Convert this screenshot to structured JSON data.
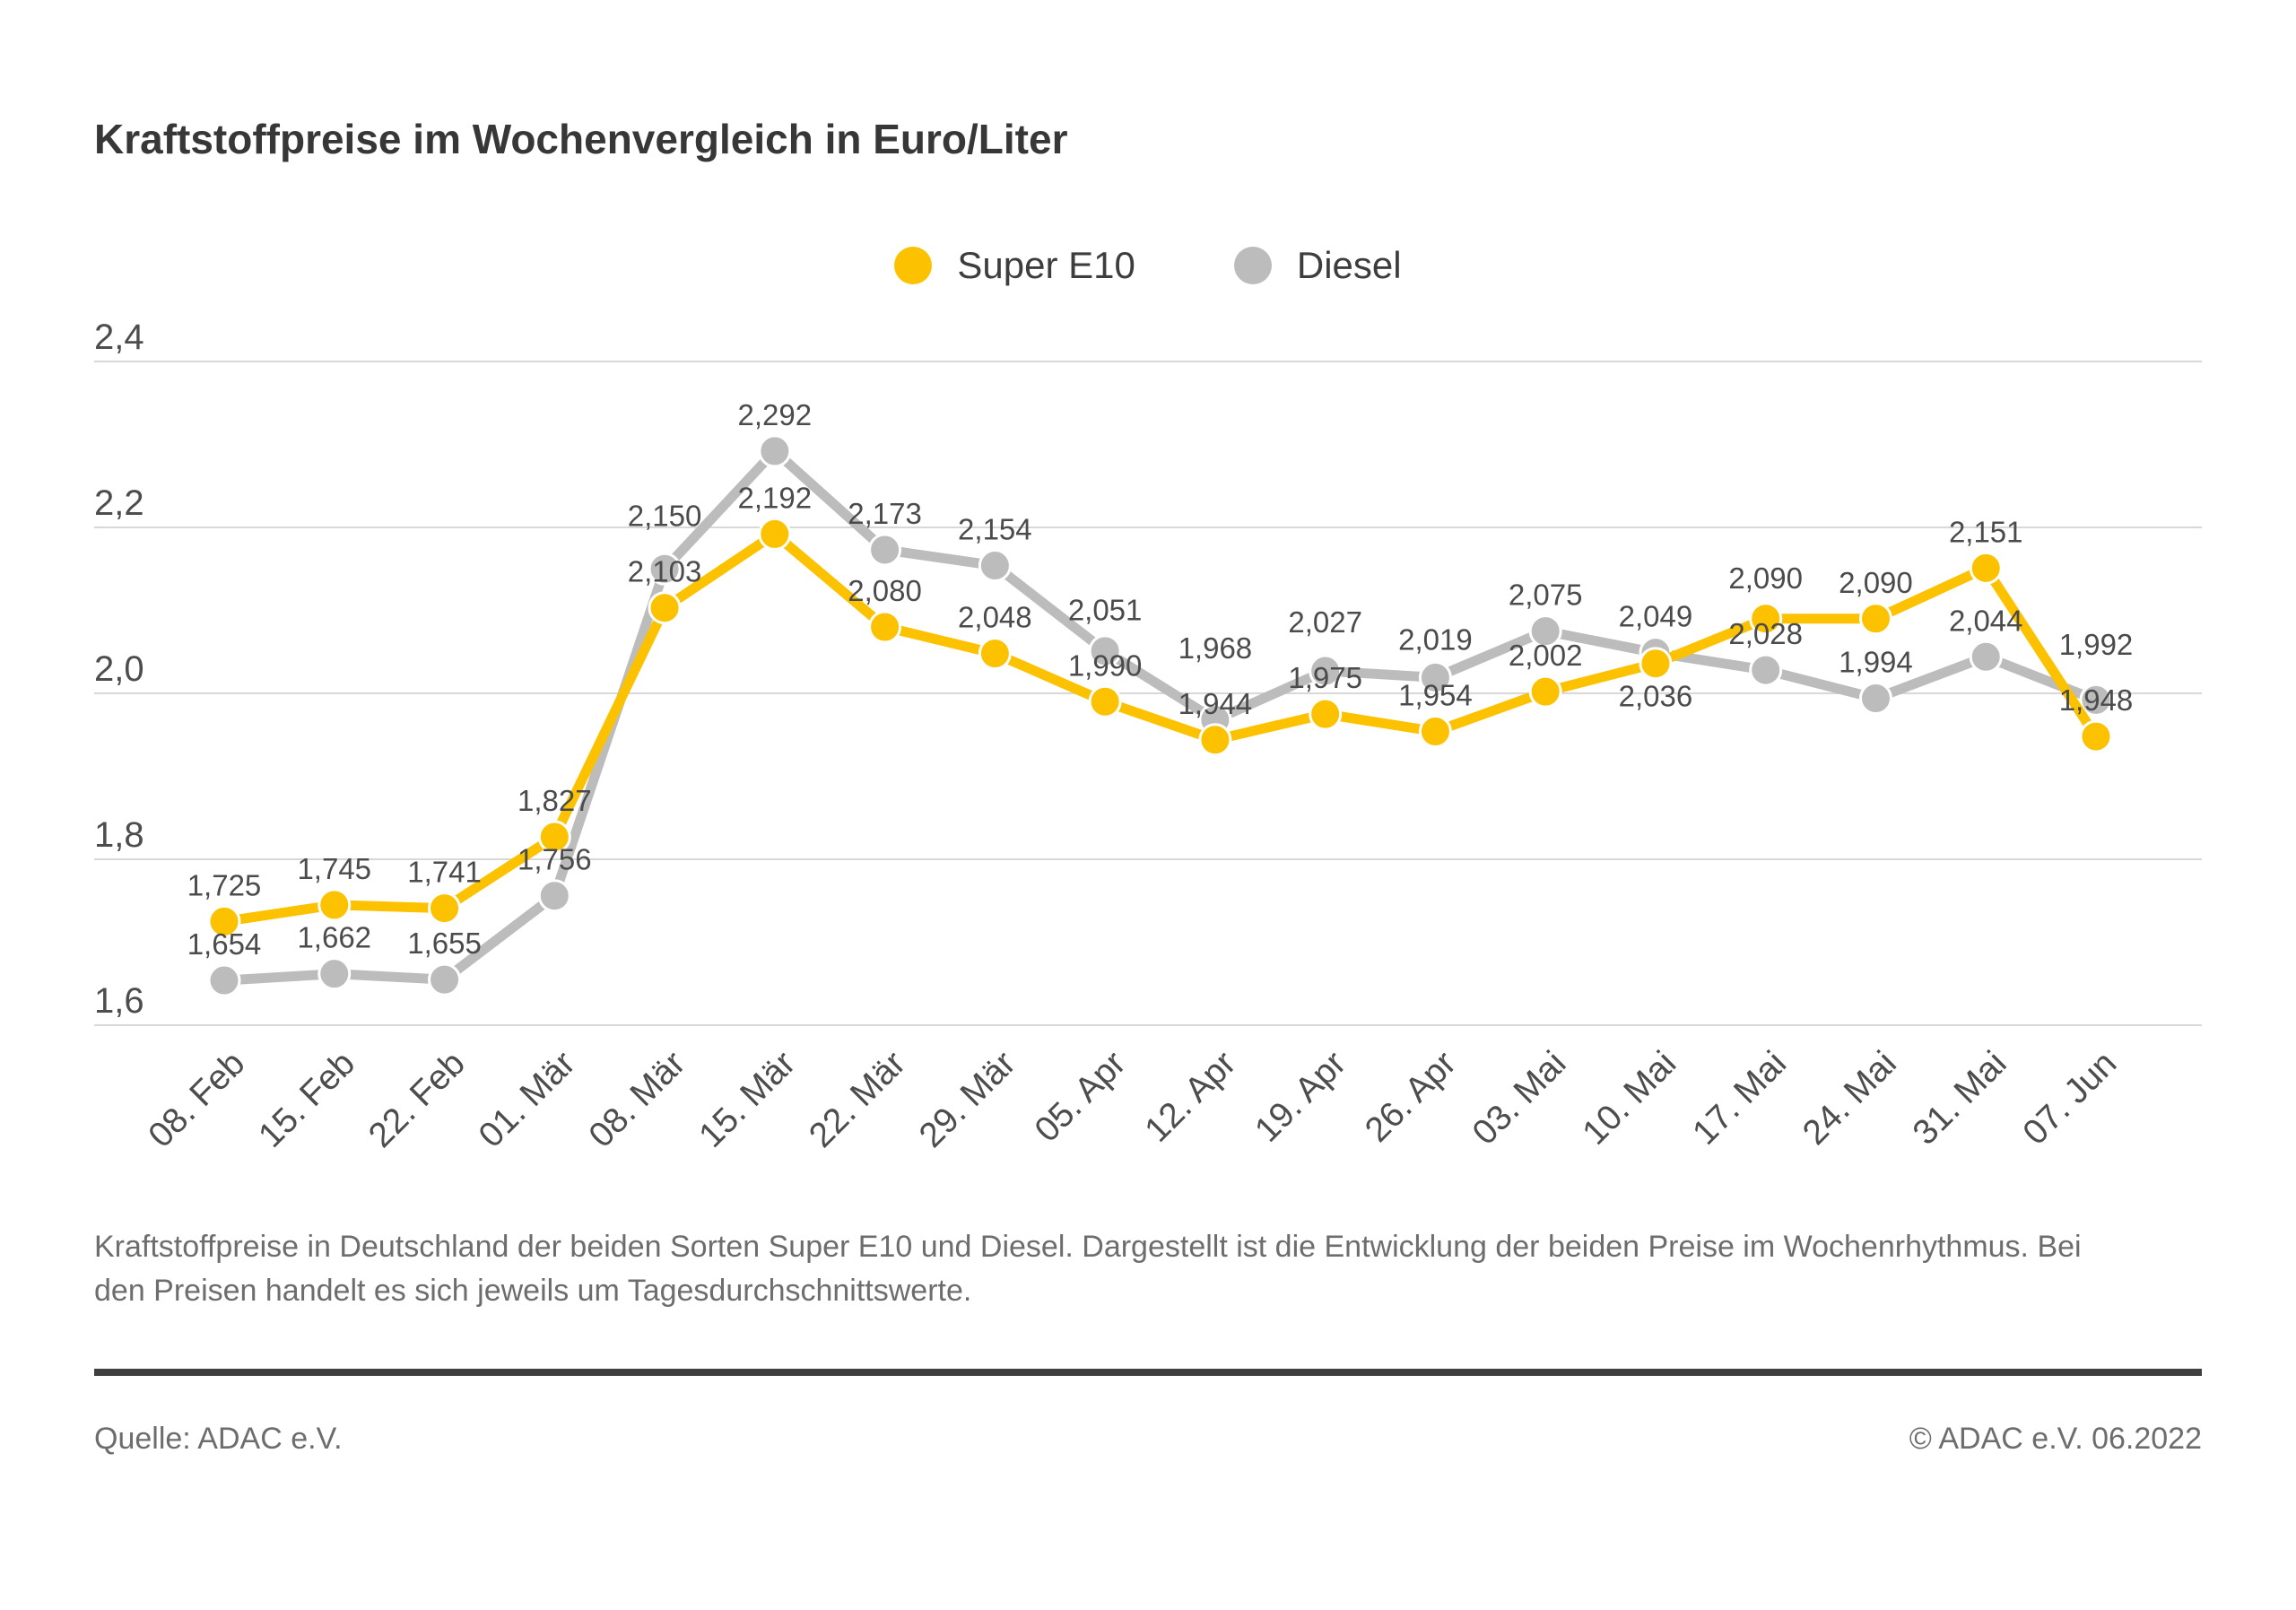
{
  "page": {
    "caption": "Kraftstoffpreise in Deutschland der beiden Sorten Super E10 und Diesel. Dargestellt ist die Entwicklung der beiden Preise im Wochenrhythmus. Bei den Preisen handelt es sich jeweils um Tagesdurchschnittswerte.",
    "source": "Quelle: ADAC e.V.",
    "copyright": "© ADAC e.V. 06.2022"
  },
  "chart_data": {
    "type": "line",
    "title": "Kraftstoffpreise im Wochenvergleich in Euro/Liter",
    "categories": [
      "08. Feb",
      "15. Feb",
      "22. Feb",
      "01. Mär",
      "08. Mär",
      "15. Mär",
      "22. Mär",
      "29. Mär",
      "05. Apr",
      "12. Apr",
      "19. Apr",
      "26. Apr",
      "03. Mai",
      "10. Mai",
      "17. Mai",
      "24. Mai",
      "31. Mai",
      "07. Jun"
    ],
    "series": [
      {
        "name": "Super E10",
        "color": "#FCC200",
        "values": [
          1.725,
          1.745,
          1.741,
          1.827,
          2.103,
          2.192,
          2.08,
          2.048,
          1.99,
          1.944,
          1.975,
          1.954,
          2.002,
          2.036,
          2.09,
          2.09,
          2.151,
          1.948
        ]
      },
      {
        "name": "Diesel",
        "color": "#BCBCBC",
        "values": [
          1.654,
          1.662,
          1.655,
          1.756,
          2.15,
          2.292,
          2.173,
          2.154,
          2.051,
          1.968,
          2.027,
          2.019,
          2.075,
          2.049,
          2.028,
          1.994,
          2.044,
          1.992
        ]
      }
    ],
    "xlabel": "",
    "ylabel": "Euro/Liter",
    "ylim": [
      1.6,
      2.4
    ],
    "y_ticks": [
      2.4,
      2.2,
      2.0,
      1.8,
      1.6
    ],
    "y_tick_labels": [
      "2,4",
      "2,2",
      "2,0",
      "1,8",
      "1,6"
    ],
    "decimal_separator": ",",
    "grid": true,
    "legend_position": "top-center",
    "data_labels": true
  }
}
